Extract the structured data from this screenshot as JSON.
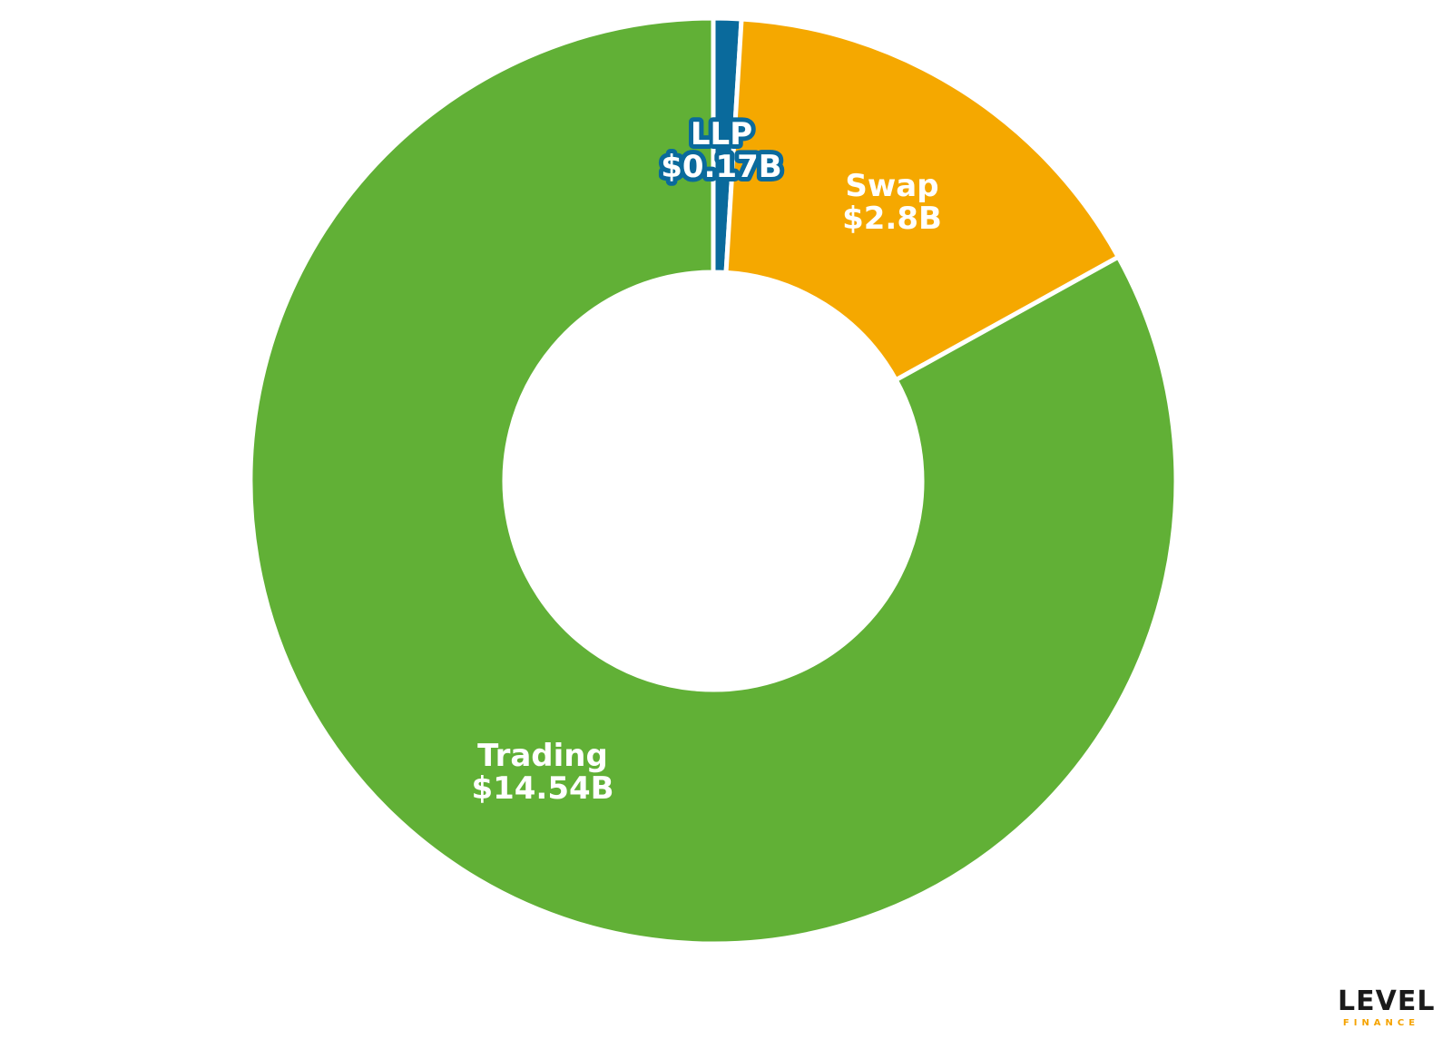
{
  "chart_data": {
    "type": "pie",
    "donut": true,
    "title": "",
    "slices": [
      {
        "label": "LLP",
        "value_label": "$0.17B",
        "value": 0.17,
        "color": "#0a6a9c"
      },
      {
        "label": "Swap",
        "value_label": "$2.8B",
        "value": 2.8,
        "color": "#f5a800"
      },
      {
        "label": "Trading",
        "value_label": "$14.54B",
        "value": 14.54,
        "color": "#61b036"
      }
    ],
    "label_color": "#ffffff",
    "legend": "none"
  },
  "logo": {
    "word": "LEVEL",
    "sub": "FINANCE",
    "accent_color": "#f5a300"
  }
}
